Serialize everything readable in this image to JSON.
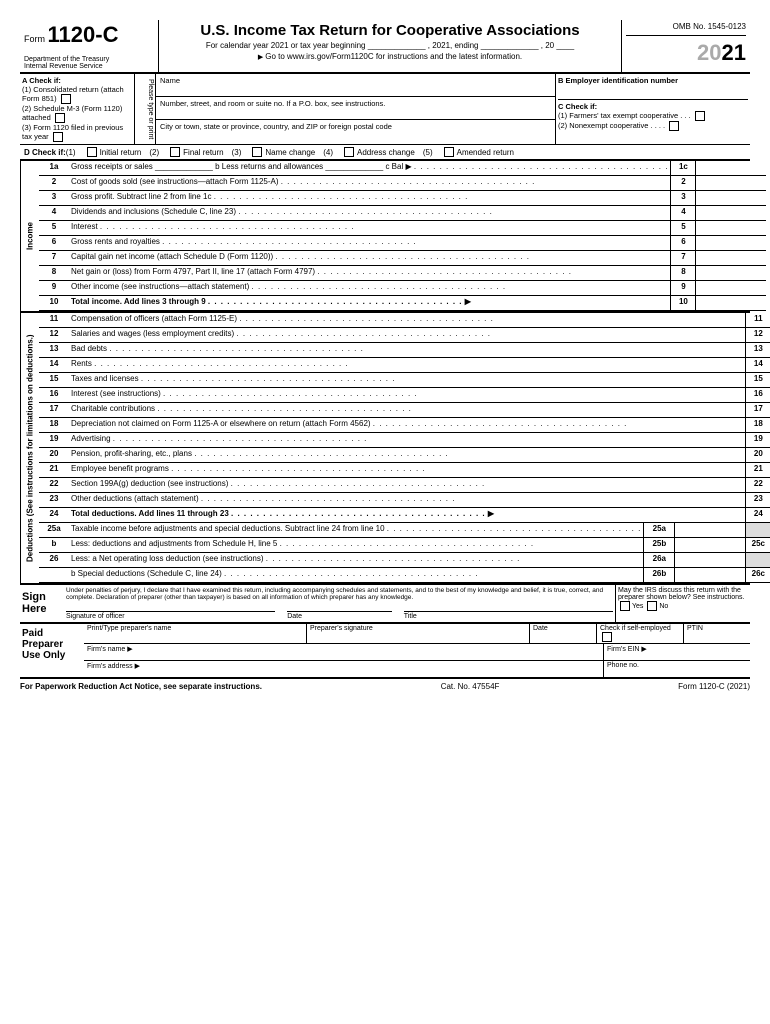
{
  "header": {
    "form_prefix": "Form",
    "form_number": "1120-C",
    "dept": "Department of the Treasury\nInternal Revenue Service",
    "title": "U.S. Income Tax Return for Cooperative Associations",
    "subtitle": "For calendar year 2021 or tax year beginning _____________ , 2021, ending _____________ , 20 ____",
    "goto": "Go to www.irs.gov/Form1120C for instructions and the latest information.",
    "omb": "OMB No. 1545-0123",
    "year_gray": "20",
    "year": "21"
  },
  "secA": {
    "label": "A   Check if:",
    "items": [
      "(1) Consolidated return (attach Form 851)",
      "(2) Schedule M-3 (Form 1120) attached",
      "(3) Form 1120 filed in previous tax year"
    ],
    "typePrint": "Please type or print",
    "name": "Name",
    "addr1": "Number, street, and room or suite no. If a P.O. box, see instructions.",
    "addr2": "City or town, state or province, country, and ZIP or foreign postal code",
    "B": "B  Employer identification number",
    "C": "C    Check if:",
    "C1": "(1)  Farmers' tax exempt cooperative  .  .  .",
    "C2": "(2)  Nonexempt cooperative  .  .  .  ."
  },
  "secD": {
    "label": "D    Check if:",
    "opts": [
      "(1)",
      "Initial return",
      "(2)",
      "Final return",
      "(3)",
      "Name change",
      "(4)",
      "Address change",
      "(5)",
      "Amended return"
    ]
  },
  "income": {
    "side": "Income",
    "lines": [
      {
        "n": "1a",
        "t": "Gross receipts or sales _____________   b Less returns and allowances _____________   c Bal ▶",
        "r": "1c"
      },
      {
        "n": "2",
        "t": "Cost of goods sold (see instructions—attach Form 1125-A)",
        "r": "2"
      },
      {
        "n": "3",
        "t": "Gross profit. Subtract line 2 from line 1c",
        "r": "3"
      },
      {
        "n": "4",
        "t": "Dividends and inclusions (Schedule C, line 23)",
        "r": "4"
      },
      {
        "n": "5",
        "t": "Interest",
        "r": "5"
      },
      {
        "n": "6",
        "t": "Gross rents and royalties",
        "r": "6"
      },
      {
        "n": "7",
        "t": "Capital gain net income (attach Schedule D (Form 1120))",
        "r": "7"
      },
      {
        "n": "8",
        "t": "Net gain or (loss) from Form 4797, Part II, line 17 (attach Form 4797)",
        "r": "8"
      },
      {
        "n": "9",
        "t": "Other income (see instructions—attach statement)",
        "r": "9"
      },
      {
        "n": "10",
        "t": "Total income. Add lines 3 through 9",
        "r": "10",
        "bold": true,
        "arrow": true
      }
    ]
  },
  "deductions": {
    "side": "Deductions (See instructions for limitations on deductions.)",
    "lines": [
      {
        "n": "11",
        "t": "Compensation of officers (attach Form 1125-E)",
        "r": "11"
      },
      {
        "n": "12",
        "t": "Salaries and wages (less employment credits)",
        "r": "12"
      },
      {
        "n": "13",
        "t": "Bad debts",
        "r": "13"
      },
      {
        "n": "14",
        "t": "Rents",
        "r": "14"
      },
      {
        "n": "15",
        "t": "Taxes and licenses",
        "r": "15"
      },
      {
        "n": "16",
        "t": "Interest (see instructions)",
        "r": "16"
      },
      {
        "n": "17",
        "t": "Charitable contributions",
        "r": "17"
      },
      {
        "n": "18",
        "t": "Depreciation not claimed on Form 1125-A or elsewhere on return (attach Form 4562)",
        "r": "18"
      },
      {
        "n": "19",
        "t": "Advertising",
        "r": "19"
      },
      {
        "n": "20",
        "t": "Pension, profit-sharing, etc., plans",
        "r": "20"
      },
      {
        "n": "21",
        "t": "Employee benefit programs",
        "r": "21"
      },
      {
        "n": "22",
        "t": "Section 199A(g) deduction (see instructions)",
        "r": "22"
      },
      {
        "n": "23",
        "t": "Other deductions (attach statement)",
        "r": "23"
      },
      {
        "n": "24",
        "t": "Total deductions. Add lines 11 through 23",
        "r": "24",
        "bold": true,
        "arrow": true
      },
      {
        "n": "25a",
        "t": "Taxable income before adjustments and special deductions. Subtract line 24 from line 10",
        "sub": "25a",
        "gray": true
      },
      {
        "n": "b",
        "t": "Less: deductions and adjustments from Schedule H, line 5",
        "sub": "25b",
        "r": "25c"
      },
      {
        "n": "26",
        "t": "Less: a  Net operating loss deduction (see instructions)",
        "sub": "26a",
        "gray": true
      },
      {
        "n": "",
        "t": "          b  Special deductions (Schedule C, line 24)",
        "sub": "26b",
        "r": "26c"
      }
    ]
  },
  "sign": {
    "label": "Sign Here",
    "perjury": "Under penalties of perjury, I declare that I have examined this return, including accompanying schedules and statements, and to the best of my knowledge and belief, it is true, correct, and complete. Declaration of preparer (other than taxpayer) is based on all information of which preparer has any knowledge.",
    "sig": "Signature of officer",
    "date": "Date",
    "title": "Title",
    "irs": "May the IRS discuss this return with the preparer shown below? See instructions.",
    "yes": "Yes",
    "no": "No"
  },
  "prep": {
    "label": "Paid Preparer Use Only",
    "r1": [
      "Print/Type preparer's name",
      "Preparer's signature",
      "Date",
      "Check        if self-employed",
      "PTIN"
    ],
    "r2l": "Firm's name   ▶",
    "r2r": "Firm's EIN ▶",
    "r3l": "Firm's address ▶",
    "r3r": "Phone no."
  },
  "footer": {
    "l": "For Paperwork Reduction Act Notice, see separate instructions.",
    "c": "Cat. No. 47554F",
    "r": "Form 1120-C (2021)"
  }
}
